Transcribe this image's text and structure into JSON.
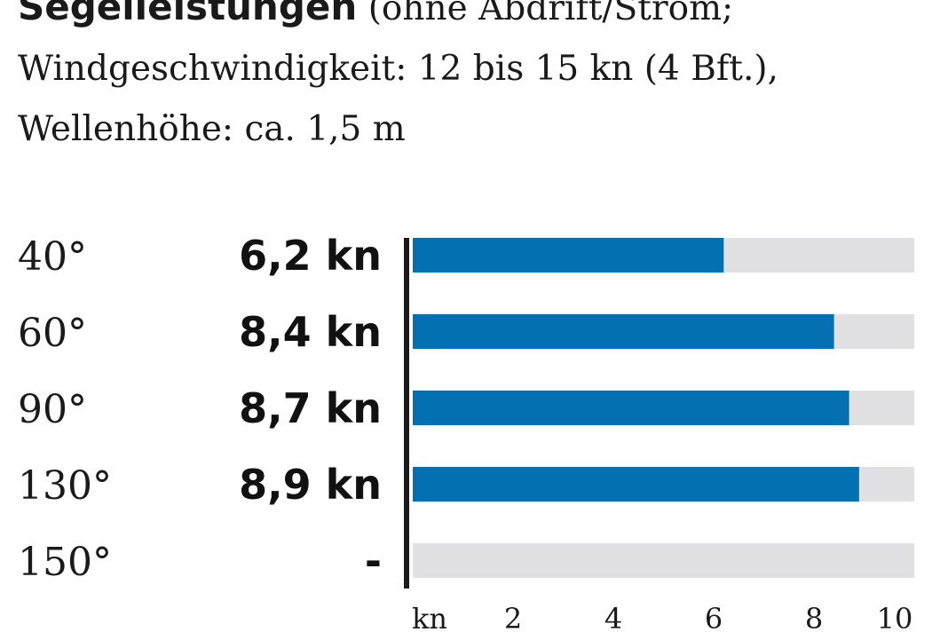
{
  "heading": {
    "bold": "Segelleistungen",
    "rest": " (ohne Abdrift/Strom;",
    "line2": "Windgeschwindigkeit: 12 bis 15 kn (4 Bft.),",
    "line3": "Wellenhöhe: ca. 1,5 m"
  },
  "colors": {
    "bar": "#0270b1",
    "track": "#e1e1e3",
    "axis": "#1a1a1a"
  },
  "chart_data": {
    "type": "bar",
    "orientation": "horizontal",
    "categories": [
      "40°",
      "60°",
      "90°",
      "130°",
      "150°"
    ],
    "values": [
      6.2,
      8.4,
      8.7,
      8.9,
      null
    ],
    "value_labels": [
      "6,2 kn",
      "8,4 kn",
      "8,7 kn",
      "8,9 kn",
      "-"
    ],
    "xlim": [
      0,
      10
    ],
    "x_unit_label": "kn",
    "x_ticks": [
      "2",
      "4",
      "6",
      "8",
      "10"
    ],
    "x_tick_values": [
      2,
      4,
      6,
      8,
      10
    ],
    "grid": false,
    "legend": "none"
  }
}
